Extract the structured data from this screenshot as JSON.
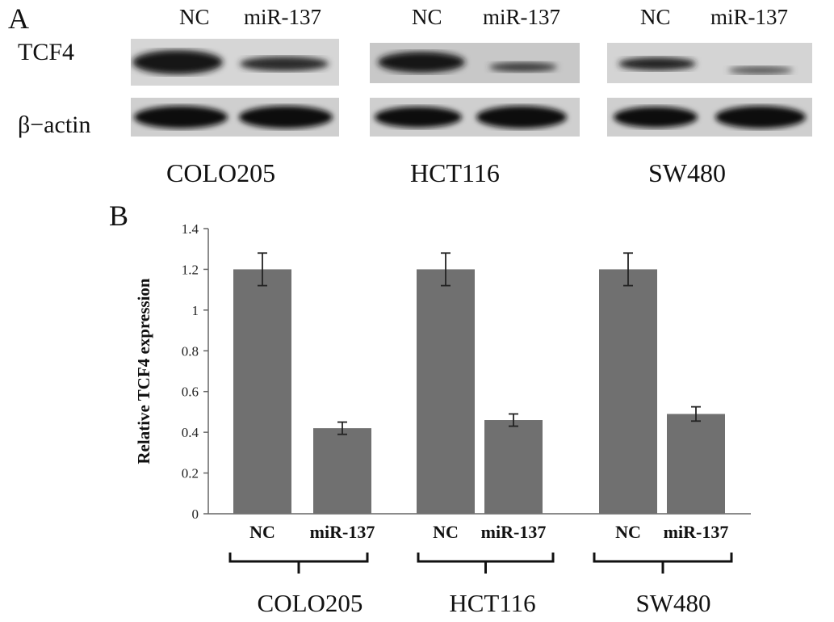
{
  "panel_a": {
    "letter": "A",
    "row_labels": [
      "TCF4",
      "β−actin"
    ],
    "groups": [
      {
        "name": "COLO205",
        "lanes": [
          "NC",
          "miR-137"
        ]
      },
      {
        "name": "HCT116",
        "lanes": [
          "NC",
          "miR-137"
        ]
      },
      {
        "name": "SW480",
        "lanes": [
          "NC",
          "miR-137"
        ]
      }
    ]
  },
  "chart_data": {
    "type": "bar",
    "panel_letter": "B",
    "title": "",
    "ylabel": "Relative TCF4 expression",
    "xlabel": "",
    "ylim": [
      0,
      1.4
    ],
    "yticks": [
      "0",
      "0.2",
      "0.4",
      "0.6",
      "0.8",
      "1",
      "1.2",
      "1.4"
    ],
    "bar_color": "#707070",
    "categories": [
      "NC",
      "miR-137",
      "NC",
      "miR-137",
      "NC",
      "miR-137"
    ],
    "values": [
      1.2,
      0.42,
      1.2,
      0.46,
      1.2,
      0.49
    ],
    "errors": [
      0.08,
      0.03,
      0.08,
      0.03,
      0.08,
      0.035
    ],
    "groups": [
      {
        "name": "COLO205",
        "bars": [
          0,
          1
        ]
      },
      {
        "name": "HCT116",
        "bars": [
          2,
          3
        ]
      },
      {
        "name": "SW480",
        "bars": [
          4,
          5
        ]
      }
    ],
    "grid": false,
    "legend": "none"
  }
}
